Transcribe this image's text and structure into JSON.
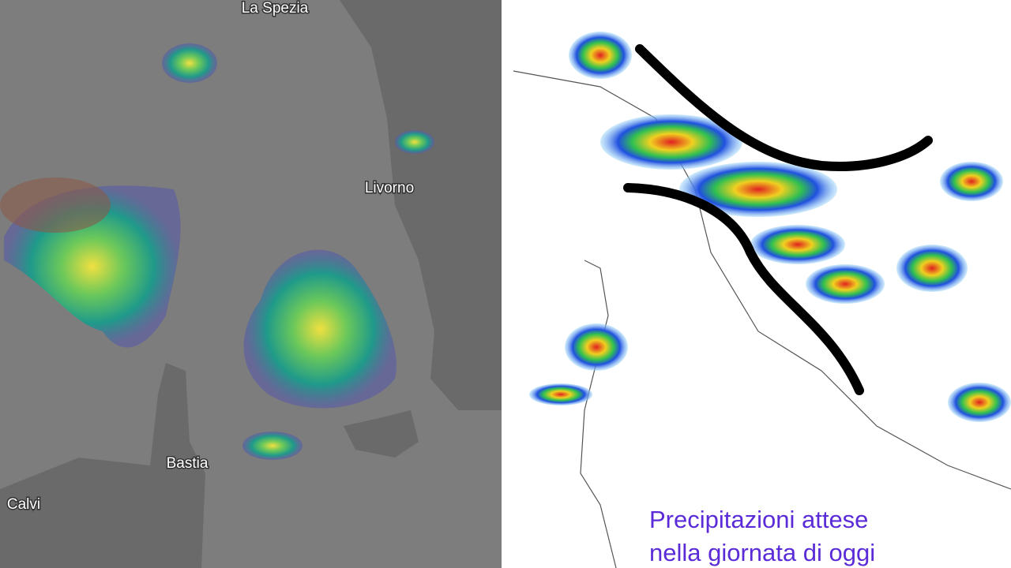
{
  "left_panel": {
    "labels": {
      "la_spezia": "La Spezia",
      "livorno": "Livorno",
      "bastia": "Bastia",
      "calvi": "Calvi"
    }
  },
  "right_panel": {
    "caption": {
      "line1": "Precipitazioni attese",
      "line2": "nella giornata di oggi"
    }
  }
}
